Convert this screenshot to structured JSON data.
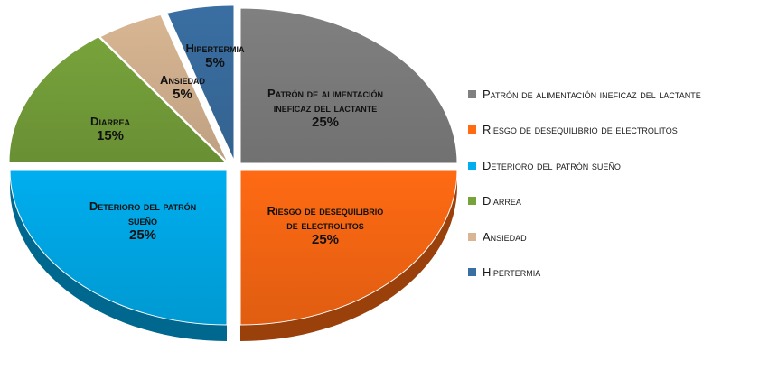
{
  "chart_data": {
    "type": "pie",
    "title": "",
    "slices": [
      {
        "label": "Patrón de alimentación ineficaz del lactante",
        "label_lines": [
          "Patrón de alimentación",
          "ineficaz del lactante"
        ],
        "percent_text": "25%",
        "value": 25,
        "color": "#808080"
      },
      {
        "label": "Riesgo de desequilibrio de electrolitos",
        "label_lines": [
          "Riesgo de desequilibrio",
          "de electrolitos"
        ],
        "percent_text": "25%",
        "value": 25,
        "color": "#ff6a13"
      },
      {
        "label": "Deterioro del patrón sueño",
        "label_lines": [
          "Deterioro del patrón",
          "sueño"
        ],
        "percent_text": "25%",
        "value": 25,
        "color": "#00aeef"
      },
      {
        "label": "Diarrea",
        "label_lines": [
          "Diarrea"
        ],
        "percent_text": "15%",
        "value": 15,
        "color": "#77a33b"
      },
      {
        "label": "Ansiedad",
        "label_lines": [
          "Ansiedad"
        ],
        "percent_text": "5%",
        "value": 5,
        "color": "#d8b693"
      },
      {
        "label": "Hipertermia",
        "label_lines": [
          "Hipertermia"
        ],
        "percent_text": "5%",
        "value": 5,
        "color": "#3a6fa3"
      }
    ],
    "legend_placement": "right",
    "style": "3d-exploded"
  }
}
